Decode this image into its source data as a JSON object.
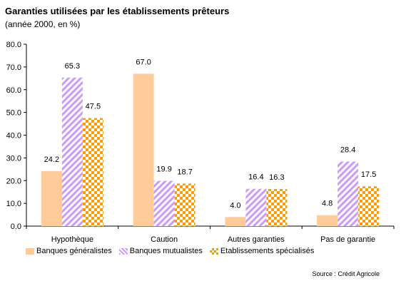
{
  "header": {
    "title": "Garanties utilisées par les établissements prêteurs",
    "subtitle": "(année 2000, en %)"
  },
  "source": "Source : Crédit Agricole",
  "chart_data": {
    "type": "bar",
    "title": "Garanties utilisées par les établissements prêteurs",
    "subtitle": "(année 2000, en %)",
    "categories": [
      "Hypothèque",
      "Caution",
      "Autres garanties",
      "Pas de garantie"
    ],
    "series": [
      {
        "name": "Banques généralistes",
        "values": [
          24.2,
          67.0,
          4.0,
          4.8
        ],
        "color": "#ffcc99",
        "pattern": "solid"
      },
      {
        "name": "Banques mutualistes",
        "values": [
          65.3,
          19.9,
          16.4,
          28.4
        ],
        "color": "#cc99ff",
        "pattern": "diagonal-stripes"
      },
      {
        "name": "Etablissements spécialisés",
        "values": [
          47.5,
          18.7,
          16.3,
          17.5
        ],
        "color": "#ff9900",
        "pattern": "checkerboard"
      }
    ],
    "ylim": [
      0,
      80
    ],
    "yticks": [
      "0.0",
      "10.0",
      "20.0",
      "30.0",
      "40.0",
      "50.0",
      "60.0",
      "70.0",
      "80.0"
    ],
    "grid": false,
    "legend_position": "bottom",
    "data_labels": true
  }
}
